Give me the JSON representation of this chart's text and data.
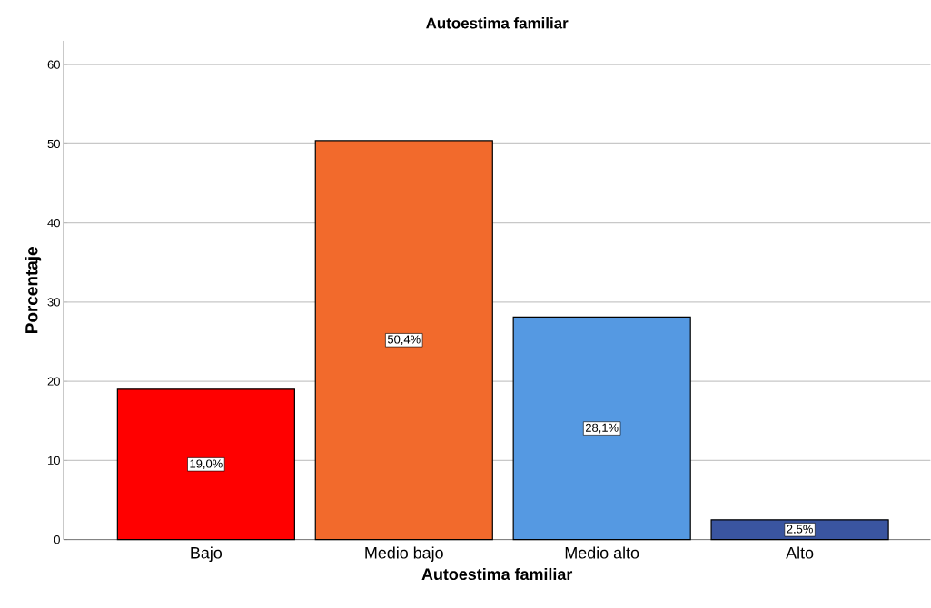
{
  "chart_data": {
    "type": "bar",
    "title": "Autoestima familiar",
    "xlabel": "Autoestima familiar",
    "ylabel": "Porcentaje",
    "categories": [
      "Bajo",
      "Medio bajo",
      "Medio alto",
      "Alto"
    ],
    "values": [
      19.0,
      50.4,
      28.1,
      2.5
    ],
    "colors": [
      "#ff0000",
      "#f26a2c",
      "#5599e2",
      "#3a55a0"
    ],
    "value_labels": [
      "19,0%",
      "50,4%",
      "28,1%",
      "2,5%"
    ],
    "ylim": [
      0,
      63
    ],
    "yticks": [
      0,
      10,
      20,
      30,
      40,
      50,
      60
    ],
    "grid": "y"
  }
}
